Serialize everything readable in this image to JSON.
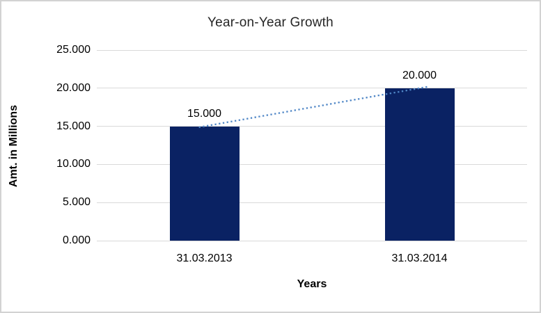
{
  "chart_data": {
    "type": "bar",
    "title": "Year-on-Year Growth",
    "xlabel": "Years",
    "ylabel": "Amt. in Millions",
    "categories": [
      "31.03.2013",
      "31.03.2014"
    ],
    "values": [
      15000,
      20000
    ],
    "data_labels": [
      "15.000",
      "20.000"
    ],
    "y_ticks": [
      {
        "label": "0.000",
        "value": 0
      },
      {
        "label": "5.000",
        "value": 5000
      },
      {
        "label": "10.000",
        "value": 10000
      },
      {
        "label": "15.000",
        "value": 15000
      },
      {
        "label": "20.000",
        "value": 20000
      },
      {
        "label": "25.000",
        "value": 25000
      }
    ],
    "ylim": [
      0,
      25000
    ],
    "grid": true,
    "legend": false,
    "bar_color": "#0a2263",
    "gridline_color": "#d9d9d9",
    "trendline": {
      "type": "linear",
      "style": "dotted",
      "color": "#4f86c6"
    }
  }
}
